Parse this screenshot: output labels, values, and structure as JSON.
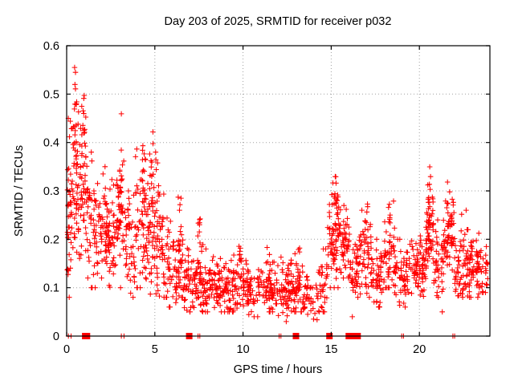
{
  "title": "Day 203 of 2025, SRMTID for receiver p032",
  "colors": {
    "marker": "#ff0000",
    "grid": "#a0a0a0",
    "axis": "#000000",
    "background": "#ffffff"
  },
  "chart_data": {
    "type": "scatter",
    "title": "Day 203 of 2025, SRMTID for receiver p032",
    "xlabel": "GPS time / hours",
    "ylabel": "SRMTID / TECUs",
    "xlim": [
      0,
      24
    ],
    "ylim": [
      0,
      0.6
    ],
    "xticks": [
      0,
      5,
      10,
      15,
      20
    ],
    "xtick_labels": [
      "0",
      "5",
      "10",
      "15",
      "20"
    ],
    "yticks": [
      0,
      0.1,
      0.2,
      0.3,
      0.4,
      0.5,
      0.6
    ],
    "ytick_labels": [
      "0",
      "0.1",
      "0.2",
      "0.3",
      "0.4",
      "0.5",
      "0.6"
    ],
    "grid": true,
    "legend": "none",
    "marker": "plus",
    "marker_color": "#ff0000",
    "seed": 20250203,
    "bands_comment": "density envelope read off the plot: [t0,t1,count,yMin,yMax,yCenter]",
    "bands": [
      [
        0.02,
        0.3,
        40,
        0.08,
        0.45,
        0.26
      ],
      [
        0.3,
        0.7,
        45,
        0.15,
        0.5,
        0.32
      ],
      [
        0.7,
        1.2,
        55,
        0.12,
        0.48,
        0.3
      ],
      [
        1.2,
        1.8,
        45,
        0.1,
        0.38,
        0.22
      ],
      [
        1.8,
        2.3,
        50,
        0.12,
        0.35,
        0.23
      ],
      [
        2.3,
        2.8,
        45,
        0.1,
        0.33,
        0.2
      ],
      [
        2.8,
        3.3,
        50,
        0.1,
        0.4,
        0.24
      ],
      [
        3.3,
        3.9,
        45,
        0.08,
        0.3,
        0.18
      ],
      [
        3.9,
        4.5,
        50,
        0.1,
        0.4,
        0.23
      ],
      [
        4.5,
        5.1,
        55,
        0.08,
        0.38,
        0.21
      ],
      [
        5.1,
        5.7,
        45,
        0.08,
        0.32,
        0.17
      ],
      [
        5.7,
        6.3,
        45,
        0.06,
        0.25,
        0.14
      ],
      [
        6.3,
        6.6,
        30,
        0.08,
        0.26,
        0.16
      ],
      [
        6.6,
        7.3,
        50,
        0.05,
        0.2,
        0.11
      ],
      [
        7.3,
        7.8,
        45,
        0.05,
        0.22,
        0.12
      ],
      [
        7.8,
        8.6,
        60,
        0.05,
        0.18,
        0.1
      ],
      [
        8.6,
        9.4,
        60,
        0.05,
        0.17,
        0.1
      ],
      [
        9.4,
        10.2,
        55,
        0.05,
        0.19,
        0.11
      ],
      [
        10.2,
        11.0,
        50,
        0.04,
        0.16,
        0.095
      ],
      [
        11.0,
        11.8,
        55,
        0.05,
        0.18,
        0.1
      ],
      [
        11.8,
        12.6,
        55,
        0.04,
        0.17,
        0.1
      ],
      [
        12.6,
        13.4,
        55,
        0.05,
        0.19,
        0.11
      ],
      [
        13.4,
        14.2,
        40,
        0.03,
        0.13,
        0.08
      ],
      [
        14.2,
        14.8,
        35,
        0.05,
        0.18,
        0.1
      ],
      [
        14.8,
        15.5,
        55,
        0.1,
        0.31,
        0.2
      ],
      [
        15.5,
        16.0,
        45,
        0.12,
        0.28,
        0.2
      ],
      [
        16.0,
        16.6,
        45,
        0.08,
        0.22,
        0.14
      ],
      [
        16.6,
        17.3,
        50,
        0.08,
        0.26,
        0.16
      ],
      [
        17.3,
        18.0,
        50,
        0.06,
        0.2,
        0.12
      ],
      [
        18.0,
        18.6,
        45,
        0.1,
        0.28,
        0.17
      ],
      [
        18.6,
        19.4,
        55,
        0.06,
        0.2,
        0.12
      ],
      [
        19.4,
        20.0,
        45,
        0.08,
        0.22,
        0.14
      ],
      [
        20.0,
        20.4,
        40,
        0.08,
        0.25,
        0.14
      ],
      [
        20.4,
        20.8,
        45,
        0.12,
        0.34,
        0.22
      ],
      [
        20.8,
        21.4,
        45,
        0.08,
        0.24,
        0.15
      ],
      [
        21.4,
        22.0,
        50,
        0.1,
        0.31,
        0.2
      ],
      [
        22.0,
        22.7,
        55,
        0.08,
        0.26,
        0.15
      ],
      [
        22.7,
        23.4,
        55,
        0.08,
        0.22,
        0.14
      ],
      [
        23.4,
        23.9,
        30,
        0.09,
        0.2,
        0.13
      ]
    ],
    "spikes_comment": "narrow vertical streaks: [t,count,yLow,yHigh]",
    "spikes": [
      [
        0.5,
        12,
        0.35,
        0.555
      ],
      [
        1.0,
        10,
        0.3,
        0.5
      ],
      [
        3.05,
        10,
        0.25,
        0.46
      ],
      [
        4.3,
        14,
        0.15,
        0.47
      ],
      [
        4.85,
        12,
        0.2,
        0.43
      ],
      [
        5.2,
        8,
        0.2,
        0.38
      ],
      [
        6.45,
        8,
        0.15,
        0.29
      ],
      [
        7.5,
        8,
        0.12,
        0.245
      ],
      [
        9.8,
        8,
        0.12,
        0.205
      ],
      [
        11.5,
        7,
        0.1,
        0.185
      ],
      [
        13.2,
        7,
        0.1,
        0.19
      ],
      [
        15.2,
        16,
        0.15,
        0.33
      ],
      [
        15.35,
        10,
        0.2,
        0.3
      ],
      [
        17.05,
        9,
        0.12,
        0.275
      ],
      [
        18.3,
        9,
        0.13,
        0.29
      ],
      [
        20.55,
        14,
        0.15,
        0.355
      ],
      [
        21.6,
        12,
        0.12,
        0.325
      ],
      [
        22.9,
        8,
        0.1,
        0.22
      ]
    ],
    "outliers": [
      [
        0.45,
        0.555
      ],
      [
        0.5,
        0.545
      ],
      [
        0.47,
        0.52
      ],
      [
        0.55,
        0.48
      ],
      [
        12.45,
        0.03
      ],
      [
        14.0,
        0.035
      ],
      [
        16.2,
        0.04
      ],
      [
        21.3,
        0.05
      ]
    ],
    "zero_marks_comment": "red marks sitting on the y=0 axis line: [hour, 1=thin plus / 3=solid block]",
    "zero_marks": [
      [
        0.1,
        1
      ],
      [
        0.25,
        1
      ],
      [
        1.05,
        3
      ],
      [
        1.15,
        3
      ],
      [
        3.1,
        1
      ],
      [
        3.25,
        1
      ],
      [
        6.95,
        3
      ],
      [
        7.45,
        1
      ],
      [
        7.55,
        1
      ],
      [
        12.05,
        1
      ],
      [
        12.15,
        1
      ],
      [
        13.0,
        3
      ],
      [
        14.9,
        3
      ],
      [
        16.0,
        3
      ],
      [
        16.35,
        3
      ],
      [
        16.5,
        3
      ],
      [
        19.0,
        1
      ],
      [
        19.1,
        1
      ],
      [
        21.9,
        1
      ],
      [
        22.0,
        1
      ]
    ]
  }
}
